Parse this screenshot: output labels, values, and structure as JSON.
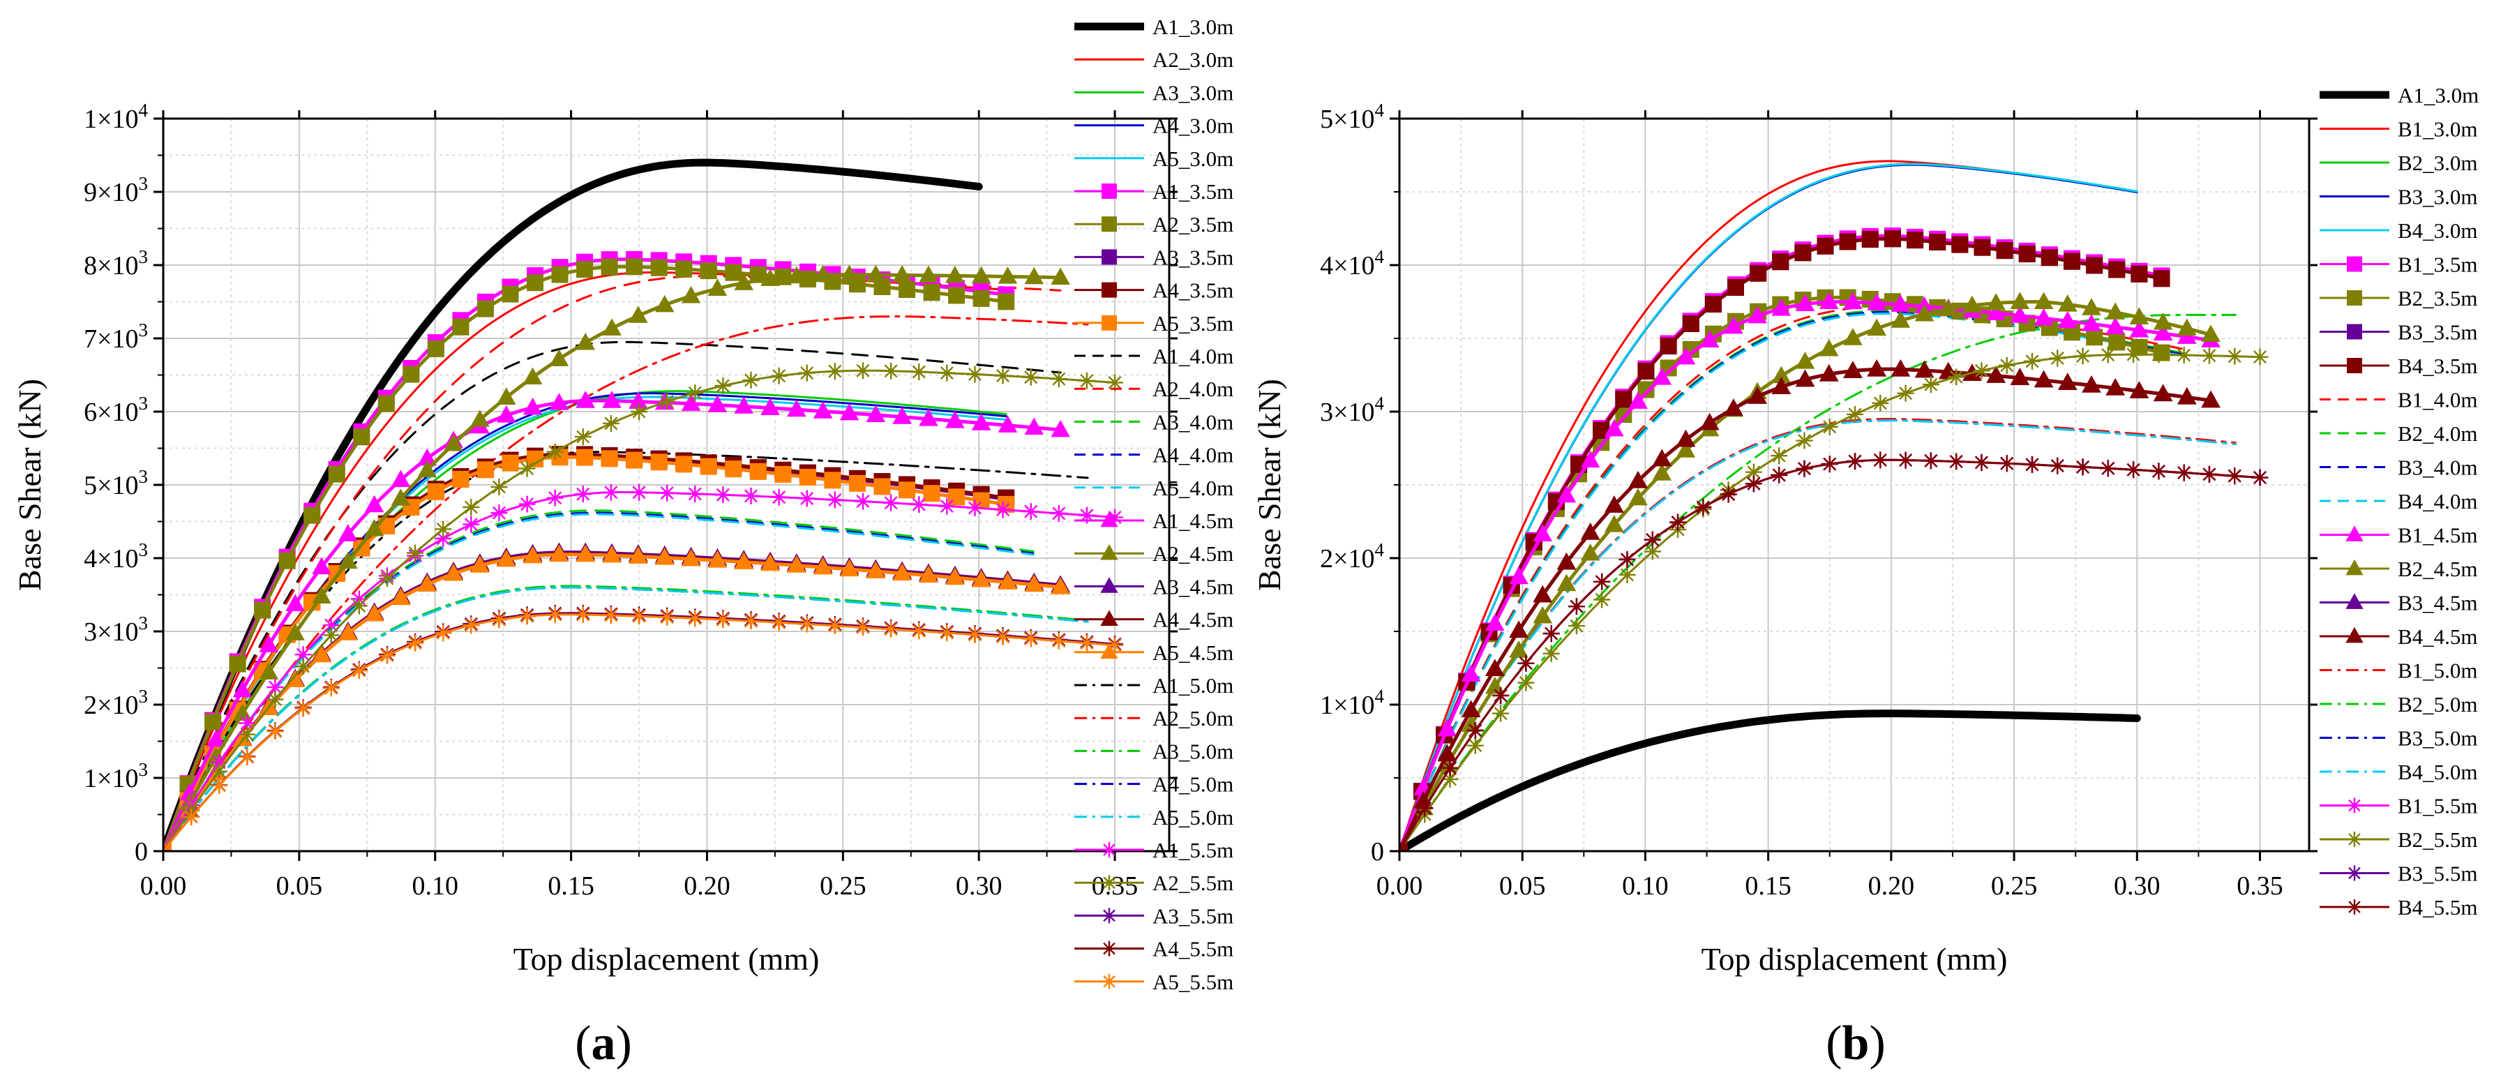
{
  "chart_data": [
    {
      "type": "line",
      "panel_label": [
        "(",
        "a",
        ")"
      ],
      "xlabel": "Top displacement (mm)",
      "ylabel": "Base Shear (kN)",
      "xlim": [
        0,
        0.37
      ],
      "ylim": [
        0,
        10000
      ],
      "xticks": [
        0.0,
        0.05,
        0.1,
        0.15,
        0.2,
        0.25,
        0.3,
        0.35
      ],
      "xtick_labels": [
        "0.00",
        "0.05",
        "0.10",
        "0.15",
        "0.20",
        "0.25",
        "0.30",
        "0.35"
      ],
      "yticks": [
        0,
        1000,
        2000,
        3000,
        4000,
        5000,
        6000,
        7000,
        8000,
        9000,
        10000
      ],
      "ytick_labels": [
        {
          "m": "0",
          "e": ""
        },
        {
          "m": "1×10",
          "e": "3"
        },
        {
          "m": "2×10",
          "e": "3"
        },
        {
          "m": "3×10",
          "e": "3"
        },
        {
          "m": "4×10",
          "e": "3"
        },
        {
          "m": "5×10",
          "e": "3"
        },
        {
          "m": "6×10",
          "e": "3"
        },
        {
          "m": "7×10",
          "e": "3"
        },
        {
          "m": "8×10",
          "e": "3"
        },
        {
          "m": "9×10",
          "e": "3"
        },
        {
          "m": "1×10",
          "e": "4"
        }
      ],
      "grid": true,
      "legend_position": "right",
      "series": [
        {
          "name": "A1_3.0m",
          "color": "#000000",
          "style": "solid",
          "marker": "none",
          "width": 11,
          "peak": 9400,
          "xpeak": 0.2,
          "xend": 0.3,
          "endratio": 0.965
        },
        {
          "name": "A2_3.0m",
          "color": "#ff0000",
          "style": "solid",
          "marker": "none",
          "width": 3,
          "peak": 7900,
          "xpeak": 0.18,
          "xend": 0.31,
          "endratio": 0.97
        },
        {
          "name": "A3_3.0m",
          "color": "#00cc00",
          "style": "solid",
          "marker": "none",
          "width": 3,
          "peak": 6280,
          "xpeak": 0.19,
          "xend": 0.31,
          "endratio": 0.95
        },
        {
          "name": "A4_3.0m",
          "color": "#0000cc",
          "style": "solid",
          "marker": "none",
          "width": 3,
          "peak": 6250,
          "xpeak": 0.18,
          "xend": 0.31,
          "endratio": 0.95
        },
        {
          "name": "A5_3.0m",
          "color": "#00ccee",
          "style": "solid",
          "marker": "none",
          "width": 3,
          "peak": 6200,
          "xpeak": 0.18,
          "xend": 0.31,
          "endratio": 0.95
        },
        {
          "name": "A1_3.5m",
          "color": "#ff00ff",
          "style": "solid",
          "marker": "square",
          "width": 5,
          "peak": 8080,
          "xpeak": 0.17,
          "xend": 0.31,
          "endratio": 0.94
        },
        {
          "name": "A2_3.5m",
          "color": "#808000",
          "style": "solid",
          "marker": "square",
          "width": 5,
          "peak": 7980,
          "xpeak": 0.17,
          "xend": 0.31,
          "endratio": 0.94
        },
        {
          "name": "A3_3.5m",
          "color": "#660099",
          "style": "solid",
          "marker": "square",
          "width": 5,
          "peak": 5400,
          "xpeak": 0.15,
          "xend": 0.31,
          "endratio": 0.89
        },
        {
          "name": "A4_3.5m",
          "color": "#800000",
          "style": "solid",
          "marker": "square",
          "width": 5,
          "peak": 5420,
          "xpeak": 0.15,
          "xend": 0.31,
          "endratio": 0.89
        },
        {
          "name": "A5_3.5m",
          "color": "#ff8000",
          "style": "solid",
          "marker": "square",
          "width": 5,
          "peak": 5380,
          "xpeak": 0.15,
          "xend": 0.31,
          "endratio": 0.88
        },
        {
          "name": "A1_4.0m",
          "color": "#000000",
          "style": "dash",
          "marker": "none",
          "width": 3,
          "peak": 6950,
          "xpeak": 0.17,
          "xend": 0.33,
          "endratio": 0.94
        },
        {
          "name": "A2_4.0m",
          "color": "#ff0000",
          "style": "dash",
          "marker": "none",
          "width": 3,
          "peak": 7850,
          "xpeak": 0.2,
          "xend": 0.33,
          "endratio": 0.975
        },
        {
          "name": "A3_4.0m",
          "color": "#00cc00",
          "style": "dash",
          "marker": "none",
          "width": 3,
          "peak": 4650,
          "xpeak": 0.16,
          "xend": 0.32,
          "endratio": 0.88
        },
        {
          "name": "A4_4.0m",
          "color": "#0000cc",
          "style": "dash",
          "marker": "none",
          "width": 3,
          "peak": 4620,
          "xpeak": 0.16,
          "xend": 0.32,
          "endratio": 0.88
        },
        {
          "name": "A5_4.0m",
          "color": "#00ccee",
          "style": "dash",
          "marker": "none",
          "width": 3,
          "peak": 4600,
          "xpeak": 0.16,
          "xend": 0.32,
          "endratio": 0.88
        },
        {
          "name": "A1_4.5m",
          "color": "#ff00ff",
          "style": "solid",
          "marker": "triangle",
          "width": 5,
          "peak": 6150,
          "xpeak": 0.16,
          "xend": 0.33,
          "endratio": 0.935
        },
        {
          "name": "A2_4.5m",
          "color": "#808000",
          "style": "solid",
          "marker": "triangle",
          "width": 5,
          "peak": 7870,
          "xpeak": 0.25,
          "xend": 0.33,
          "endratio": 0.995
        },
        {
          "name": "A3_4.5m",
          "color": "#660099",
          "style": "solid",
          "marker": "triangle",
          "width": 5,
          "peak": 4080,
          "xpeak": 0.15,
          "xend": 0.33,
          "endratio": 0.89
        },
        {
          "name": "A4_4.5m",
          "color": "#800000",
          "style": "solid",
          "marker": "triangle",
          "width": 5,
          "peak": 4060,
          "xpeak": 0.15,
          "xend": 0.33,
          "endratio": 0.89
        },
        {
          "name": "A5_4.5m",
          "color": "#ff8000",
          "style": "solid",
          "marker": "triangle",
          "width": 5,
          "peak": 4050,
          "xpeak": 0.15,
          "xend": 0.33,
          "endratio": 0.89
        },
        {
          "name": "A1_5.0m",
          "color": "#000000",
          "style": "dashdot",
          "marker": "none",
          "width": 3,
          "peak": 5450,
          "xpeak": 0.16,
          "xend": 0.34,
          "endratio": 0.935
        },
        {
          "name": "A2_5.0m",
          "color": "#ff0000",
          "style": "dashdot",
          "marker": "none",
          "width": 3,
          "peak": 7300,
          "xpeak": 0.27,
          "xend": 0.34,
          "endratio": 0.985
        },
        {
          "name": "A3_5.0m",
          "color": "#00cc00",
          "style": "dashdot",
          "marker": "none",
          "width": 3,
          "peak": 3620,
          "xpeak": 0.15,
          "xend": 0.34,
          "endratio": 0.87
        },
        {
          "name": "A4_5.0m",
          "color": "#0000cc",
          "style": "dashdot",
          "marker": "none",
          "width": 3,
          "peak": 3600,
          "xpeak": 0.15,
          "xend": 0.34,
          "endratio": 0.87
        },
        {
          "name": "A5_5.0m",
          "color": "#00ccee",
          "style": "dashdot",
          "marker": "none",
          "width": 3,
          "peak": 3600,
          "xpeak": 0.15,
          "xend": 0.34,
          "endratio": 0.87
        },
        {
          "name": "A1_5.5m",
          "color": "#ff00ff",
          "style": "solid",
          "marker": "star",
          "width": 3,
          "peak": 4900,
          "xpeak": 0.17,
          "xend": 0.35,
          "endratio": 0.93
        },
        {
          "name": "A2_5.5m",
          "color": "#808000",
          "style": "solid",
          "marker": "star",
          "width": 3,
          "peak": 6560,
          "xpeak": 0.26,
          "xend": 0.35,
          "endratio": 0.975
        },
        {
          "name": "A3_5.5m",
          "color": "#660099",
          "style": "solid",
          "marker": "star",
          "width": 3,
          "peak": 3250,
          "xpeak": 0.15,
          "xend": 0.35,
          "endratio": 0.87
        },
        {
          "name": "A4_5.5m",
          "color": "#800000",
          "style": "solid",
          "marker": "star",
          "width": 3,
          "peak": 3240,
          "xpeak": 0.15,
          "xend": 0.35,
          "endratio": 0.87
        },
        {
          "name": "A5_5.5m",
          "color": "#ff8000",
          "style": "solid",
          "marker": "star",
          "width": 3,
          "peak": 3230,
          "xpeak": 0.15,
          "xend": 0.35,
          "endratio": 0.87
        }
      ]
    },
    {
      "type": "line",
      "panel_label": [
        "(",
        "b",
        ")"
      ],
      "xlabel": "Top displacement (mm)",
      "ylabel": "Base Shear (kN)",
      "xlim": [
        0,
        0.37
      ],
      "ylim": [
        0,
        50000
      ],
      "xticks": [
        0.0,
        0.05,
        0.1,
        0.15,
        0.2,
        0.25,
        0.3,
        0.35
      ],
      "xtick_labels": [
        "0.00",
        "0.05",
        "0.10",
        "0.15",
        "0.20",
        "0.25",
        "0.30",
        "0.35"
      ],
      "yticks": [
        0,
        10000,
        20000,
        30000,
        40000,
        50000
      ],
      "ytick_labels": [
        {
          "m": "0",
          "e": ""
        },
        {
          "m": "1×10",
          "e": "4"
        },
        {
          "m": "2×10",
          "e": "4"
        },
        {
          "m": "3×10",
          "e": "4"
        },
        {
          "m": "4×10",
          "e": "4"
        },
        {
          "m": "5×10",
          "e": "4"
        }
      ],
      "grid": true,
      "legend_position": "right",
      "series": [
        {
          "name": "A1_3.0m",
          "color": "#000000",
          "style": "solid",
          "marker": "none",
          "width": 11,
          "peak": 9400,
          "xpeak": 0.2,
          "xend": 0.3,
          "endratio": 0.965
        },
        {
          "name": "B1_3.0m",
          "color": "#ff0000",
          "style": "solid",
          "marker": "none",
          "width": 3,
          "peak": 47100,
          "xpeak": 0.2,
          "xend": 0.3,
          "endratio": 0.955
        },
        {
          "name": "B2_3.0m",
          "color": "#00cc00",
          "style": "solid",
          "marker": "none",
          "width": 3,
          "peak": 46900,
          "xpeak": 0.21,
          "xend": 0.3,
          "endratio": 0.96
        },
        {
          "name": "B3_3.0m",
          "color": "#0000cc",
          "style": "solid",
          "marker": "none",
          "width": 3,
          "peak": 46850,
          "xpeak": 0.21,
          "xend": 0.3,
          "endratio": 0.96
        },
        {
          "name": "B4_3.0m",
          "color": "#00ccee",
          "style": "solid",
          "marker": "none",
          "width": 3,
          "peak": 46900,
          "xpeak": 0.21,
          "xend": 0.3,
          "endratio": 0.96
        },
        {
          "name": "B1_3.5m",
          "color": "#ff00ff",
          "style": "solid",
          "marker": "square",
          "width": 5,
          "peak": 42000,
          "xpeak": 0.2,
          "xend": 0.31,
          "endratio": 0.935
        },
        {
          "name": "B2_3.5m",
          "color": "#808000",
          "style": "solid",
          "marker": "square",
          "width": 5,
          "peak": 37800,
          "xpeak": 0.18,
          "xend": 0.31,
          "endratio": 0.9
        },
        {
          "name": "B3_3.5m",
          "color": "#660099",
          "style": "solid",
          "marker": "square",
          "width": 5,
          "peak": 41800,
          "xpeak": 0.2,
          "xend": 0.31,
          "endratio": 0.935
        },
        {
          "name": "B4_3.5m",
          "color": "#800000",
          "style": "solid",
          "marker": "square",
          "width": 5,
          "peak": 41800,
          "xpeak": 0.2,
          "xend": 0.31,
          "endratio": 0.935
        },
        {
          "name": "B1_4.0m",
          "color": "#ff0000",
          "style": "dash",
          "marker": "none",
          "width": 3,
          "peak": 37200,
          "xpeak": 0.2,
          "xend": 0.32,
          "endratio": 0.92
        },
        {
          "name": "B2_4.0m",
          "color": "#00cc00",
          "style": "dash",
          "marker": "none",
          "width": 3,
          "peak": 36900,
          "xpeak": 0.2,
          "xend": 0.32,
          "endratio": 0.92
        },
        {
          "name": "B3_4.0m",
          "color": "#0000cc",
          "style": "dash",
          "marker": "none",
          "width": 3,
          "peak": 36800,
          "xpeak": 0.2,
          "xend": 0.32,
          "endratio": 0.92
        },
        {
          "name": "B4_4.0m",
          "color": "#00ccee",
          "style": "dash",
          "marker": "none",
          "width": 3,
          "peak": 36700,
          "xpeak": 0.2,
          "xend": 0.32,
          "endratio": 0.92
        },
        {
          "name": "B1_4.5m",
          "color": "#ff00ff",
          "style": "solid",
          "marker": "triangle",
          "width": 5,
          "peak": 37500,
          "xpeak": 0.18,
          "xend": 0.33,
          "endratio": 0.93
        },
        {
          "name": "B2_4.5m",
          "color": "#808000",
          "style": "solid",
          "marker": "triangle",
          "width": 5,
          "peak": 37500,
          "xpeak": 0.26,
          "xend": 0.33,
          "endratio": 0.94
        },
        {
          "name": "B3_4.5m",
          "color": "#660099",
          "style": "solid",
          "marker": "triangle",
          "width": 5,
          "peak": 32900,
          "xpeak": 0.2,
          "xend": 0.33,
          "endratio": 0.935
        },
        {
          "name": "B4_4.5m",
          "color": "#800000",
          "style": "solid",
          "marker": "triangle",
          "width": 5,
          "peak": 32900,
          "xpeak": 0.2,
          "xend": 0.33,
          "endratio": 0.935
        },
        {
          "name": "B1_5.0m",
          "color": "#ff0000",
          "style": "dashdot",
          "marker": "none",
          "width": 3,
          "peak": 29500,
          "xpeak": 0.2,
          "xend": 0.34,
          "endratio": 0.945
        },
        {
          "name": "B2_5.0m",
          "color": "#00cc00",
          "style": "dashdot",
          "marker": "none",
          "width": 3,
          "peak": 36600,
          "xpeak": 0.32,
          "xend": 0.34,
          "endratio": 1.0
        },
        {
          "name": "B3_5.0m",
          "color": "#0000cc",
          "style": "dashdot",
          "marker": "none",
          "width": 3,
          "peak": 29400,
          "xpeak": 0.2,
          "xend": 0.34,
          "endratio": 0.945
        },
        {
          "name": "B4_5.0m",
          "color": "#00ccee",
          "style": "dashdot",
          "marker": "none",
          "width": 3,
          "peak": 29400,
          "xpeak": 0.2,
          "xend": 0.34,
          "endratio": 0.945
        },
        {
          "name": "B1_5.5m",
          "color": "#ff00ff",
          "style": "solid",
          "marker": "star",
          "width": 3,
          "peak": 26700,
          "xpeak": 0.2,
          "xend": 0.35,
          "endratio": 0.955
        },
        {
          "name": "B2_5.5m",
          "color": "#808000",
          "style": "solid",
          "marker": "star",
          "width": 3,
          "peak": 33900,
          "xpeak": 0.3,
          "xend": 0.35,
          "endratio": 0.995
        },
        {
          "name": "B3_5.5m",
          "color": "#660099",
          "style": "solid",
          "marker": "star",
          "width": 3,
          "peak": 26700,
          "xpeak": 0.2,
          "xend": 0.35,
          "endratio": 0.955
        },
        {
          "name": "B4_5.5m",
          "color": "#800000",
          "style": "solid",
          "marker": "star",
          "width": 3,
          "peak": 26700,
          "xpeak": 0.2,
          "xend": 0.35,
          "endratio": 0.955
        }
      ]
    }
  ]
}
